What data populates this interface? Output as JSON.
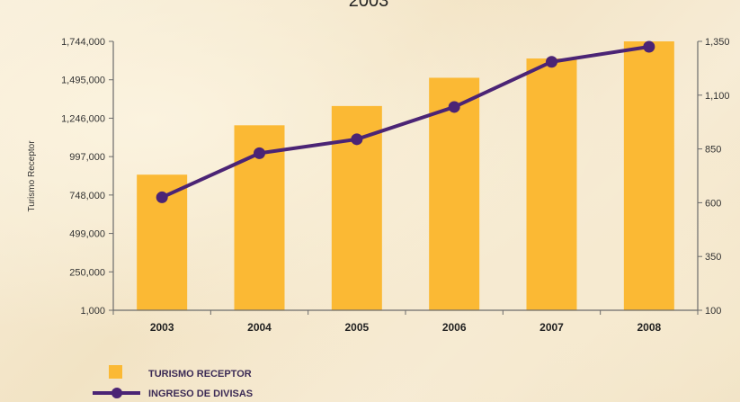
{
  "top_title_fragment": "2003",
  "chart_data": {
    "type": "bar+line",
    "categories": [
      "2003",
      "2004",
      "2005",
      "2006",
      "2007",
      "2008"
    ],
    "series": [
      {
        "name": "TURISMO RECEPTOR",
        "kind": "bar",
        "axis": "left",
        "color": "#fbb934",
        "values": [
          880000,
          1200000,
          1325000,
          1508000,
          1633000,
          1744000
        ]
      },
      {
        "name": "INGRESO DE DIVISAS",
        "kind": "line",
        "axis": "right",
        "color": "#4b2475",
        "values": [
          625,
          830,
          895,
          1045,
          1255,
          1325
        ]
      }
    ],
    "ylabel": "Turismo Receptor",
    "y_left": {
      "ylim": [
        1000,
        1744000
      ],
      "ticks": [
        "1,744,000",
        "1,495,000",
        "1,246,000",
        "997,000",
        "748,000",
        "499,000",
        "250,000",
        "1,000"
      ]
    },
    "y_right": {
      "ylim": [
        100,
        1350
      ],
      "ticks": [
        "1,350",
        "1,100",
        "850",
        "600",
        "350",
        "100"
      ]
    },
    "legend_placement": "bottom-left",
    "grid": false
  }
}
